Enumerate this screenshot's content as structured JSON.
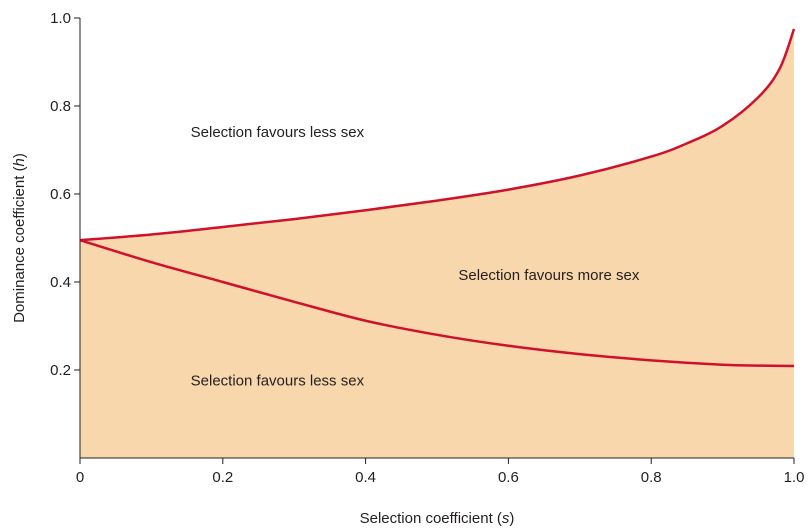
{
  "chart_data": {
    "type": "area",
    "title": "",
    "xlabel": "Selection coefficient (s)",
    "xlabel_parts": [
      "Selection coefficient (",
      "s",
      ")"
    ],
    "ylabel": "Dominance coefficient (h)",
    "ylabel_parts": [
      "Dominance coefficient (",
      "h",
      ")"
    ],
    "xlim": [
      0,
      1.0
    ],
    "ylim": [
      0,
      1.0
    ],
    "x_ticks": [
      {
        "value": 0,
        "label": "0"
      },
      {
        "value": 0.2,
        "label": "0.2"
      },
      {
        "value": 0.4,
        "label": "0.4"
      },
      {
        "value": 0.6,
        "label": "0.6"
      },
      {
        "value": 0.8,
        "label": "0.8"
      },
      {
        "value": 1.0,
        "label": "1.0"
      }
    ],
    "y_ticks": [
      {
        "value": 0.2,
        "label": "0.2"
      },
      {
        "value": 0.4,
        "label": "0.4"
      },
      {
        "value": 0.6,
        "label": "0.6"
      },
      {
        "value": 0.8,
        "label": "0.8"
      },
      {
        "value": 1.0,
        "label": "1.0"
      }
    ],
    "grid": false,
    "fill_color": "#f8d7ad",
    "line_color": "#d0112b",
    "series": [
      {
        "x": [
          0,
          0.1,
          0.2,
          0.3,
          0.4,
          0.5,
          0.6,
          0.7,
          0.8,
          0.85,
          0.9,
          0.95,
          0.98,
          1.0
        ],
        "values": [
          0.495,
          0.508,
          0.525,
          0.543,
          0.563,
          0.585,
          0.61,
          0.642,
          0.685,
          0.715,
          0.755,
          0.82,
          0.885,
          0.975
        ]
      },
      {
        "x": [
          0,
          0.1,
          0.2,
          0.3,
          0.4,
          0.5,
          0.6,
          0.7,
          0.8,
          0.9,
          0.95,
          1.0
        ],
        "values": [
          0.495,
          0.445,
          0.4,
          0.355,
          0.312,
          0.28,
          0.255,
          0.236,
          0.222,
          0.212,
          0.21,
          0.209
        ]
      }
    ],
    "annotations": [
      {
        "text": "Selection favours less sex",
        "x": 0.155,
        "y": 0.73
      },
      {
        "text": "Selection favours more sex",
        "x": 0.53,
        "y": 0.405
      },
      {
        "text": "Selection favours less sex",
        "x": 0.155,
        "y": 0.165
      }
    ]
  }
}
